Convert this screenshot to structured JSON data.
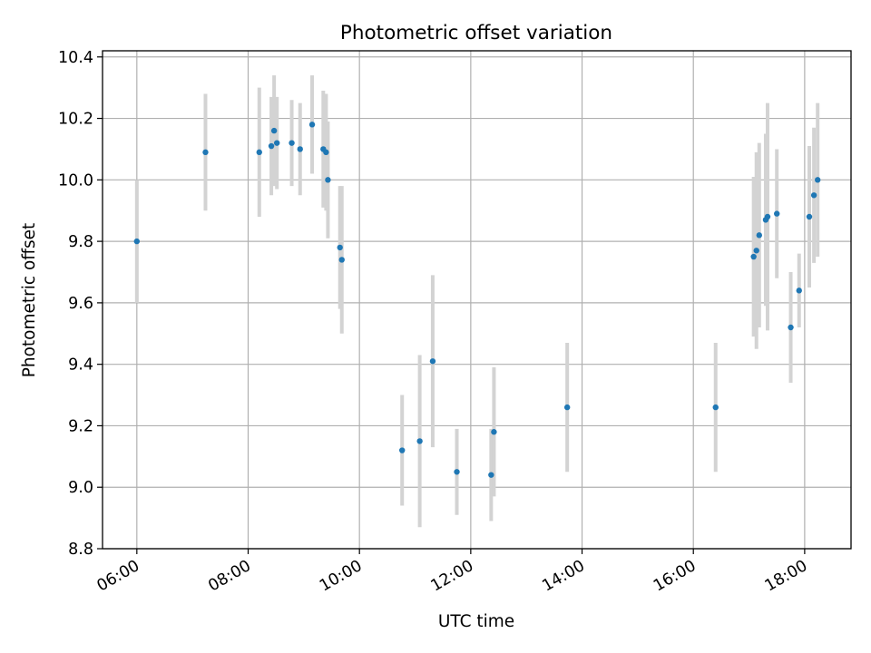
{
  "chart_data": {
    "type": "scatter",
    "title": "Photometric offset variation",
    "xlabel": "UTC time",
    "ylabel": "Photometric offset",
    "x_range": [
      "05:23",
      "18:50"
    ],
    "ylim": [
      8.8,
      10.42
    ],
    "x_ticks": [
      "06:00",
      "08:00",
      "10:00",
      "12:00",
      "14:00",
      "16:00",
      "18:00"
    ],
    "y_ticks": [
      8.8,
      9.0,
      9.2,
      9.4,
      9.6,
      9.8,
      10.0,
      10.2,
      10.4
    ],
    "y_tick_labels": [
      "8.8",
      "9.0",
      "9.2",
      "9.4",
      "9.6",
      "9.8",
      "10.0",
      "10.2",
      "10.4"
    ],
    "grid": true,
    "legend": "none",
    "colors": {
      "marker": "#1f77b4",
      "errorbar": "#d3d3d3",
      "grid": "#b0b0b0"
    },
    "series": [
      {
        "points": [
          {
            "time": "06:00",
            "y": 9.8,
            "err": 0.2
          },
          {
            "time": "07:14",
            "y": 10.09,
            "err": 0.19
          },
          {
            "time": "08:12",
            "y": 10.09,
            "err": 0.21
          },
          {
            "time": "08:25",
            "y": 10.11,
            "err": 0.16
          },
          {
            "time": "08:28",
            "y": 10.16,
            "err": 0.18
          },
          {
            "time": "08:31",
            "y": 10.12,
            "err": 0.15
          },
          {
            "time": "08:47",
            "y": 10.12,
            "err": 0.14
          },
          {
            "time": "08:56",
            "y": 10.1,
            "err": 0.15
          },
          {
            "time": "09:09",
            "y": 10.18,
            "err": 0.16
          },
          {
            "time": "09:21",
            "y": 10.1,
            "err": 0.19
          },
          {
            "time": "09:24",
            "y": 10.09,
            "err": 0.19
          },
          {
            "time": "09:26",
            "y": 10.0,
            "err": 0.19
          },
          {
            "time": "09:39",
            "y": 9.78,
            "err": 0.2
          },
          {
            "time": "09:41",
            "y": 9.74,
            "err": 0.24
          },
          {
            "time": "10:46",
            "y": 9.12,
            "err": 0.18
          },
          {
            "time": "11:05",
            "y": 9.15,
            "err": 0.28
          },
          {
            "time": "11:19",
            "y": 9.41,
            "err": 0.28
          },
          {
            "time": "11:45",
            "y": 9.05,
            "err": 0.14
          },
          {
            "time": "12:22",
            "y": 9.04,
            "err": 0.15
          },
          {
            "time": "12:25",
            "y": 9.18,
            "err": 0.21
          },
          {
            "time": "13:44",
            "y": 9.26,
            "err": 0.21
          },
          {
            "time": "16:24",
            "y": 9.26,
            "err": 0.21
          },
          {
            "time": "17:05",
            "y": 9.75,
            "err": 0.26
          },
          {
            "time": "17:08",
            "y": 9.77,
            "err": 0.32
          },
          {
            "time": "17:11",
            "y": 9.82,
            "err": 0.3
          },
          {
            "time": "17:18",
            "y": 9.87,
            "err": 0.28
          },
          {
            "time": "17:20",
            "y": 9.88,
            "err": 0.37
          },
          {
            "time": "17:30",
            "y": 9.89,
            "err": 0.21
          },
          {
            "time": "17:45",
            "y": 9.52,
            "err": 0.18
          },
          {
            "time": "17:54",
            "y": 9.64,
            "err": 0.12
          },
          {
            "time": "18:05",
            "y": 9.88,
            "err": 0.23
          },
          {
            "time": "18:10",
            "y": 9.95,
            "err": 0.22
          },
          {
            "time": "18:14",
            "y": 10.0,
            "err": 0.25
          }
        ]
      }
    ]
  }
}
